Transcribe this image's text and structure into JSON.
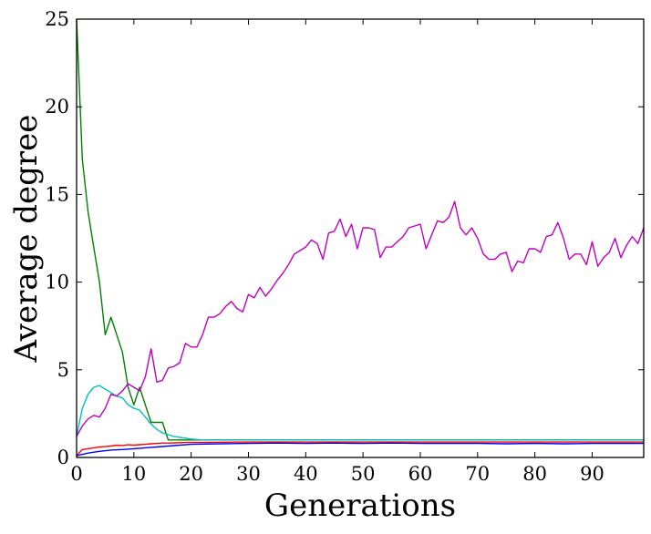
{
  "chart_data": {
    "type": "line",
    "xlabel": "Generations",
    "ylabel": "Average degree",
    "xlim": [
      0,
      99
    ],
    "ylim": [
      0,
      25
    ],
    "xticks": [
      0,
      10,
      20,
      30,
      40,
      50,
      60,
      70,
      80,
      90
    ],
    "yticks": [
      0,
      5,
      10,
      15,
      20,
      25
    ],
    "grid": false,
    "legend": "none",
    "series": [
      {
        "color": "#008000",
        "x": [
          0,
          1,
          2,
          3,
          4,
          5,
          6,
          7,
          8,
          9,
          10,
          11,
          12,
          13,
          14,
          15,
          16,
          17,
          18,
          19,
          20,
          22,
          25,
          30,
          35,
          40,
          45,
          50,
          55,
          60,
          65,
          70,
          75,
          80,
          85,
          90,
          95,
          99
        ],
        "y": [
          25,
          17,
          14,
          12,
          10,
          7,
          8,
          7,
          6,
          4,
          3,
          4,
          3,
          2,
          2,
          2,
          1,
          1,
          1,
          1,
          1,
          1,
          1,
          1,
          1,
          1,
          1,
          1,
          1,
          1,
          1,
          1,
          1,
          1,
          1,
          1,
          1,
          1
        ]
      },
      {
        "color": "#00bfbf",
        "x": [
          0,
          1,
          2,
          3,
          4,
          5,
          6,
          7,
          8,
          9,
          10,
          11,
          12,
          13,
          14,
          15,
          16,
          17,
          18,
          19,
          20,
          22,
          25,
          30,
          35,
          40,
          45,
          50,
          55,
          60,
          65,
          70,
          75,
          80,
          85,
          90,
          95,
          99
        ],
        "y": [
          1.2,
          2.8,
          3.6,
          4.0,
          4.1,
          3.9,
          3.7,
          3.5,
          3.4,
          3.0,
          2.8,
          2.7,
          2.3,
          1.9,
          1.6,
          1.4,
          1.3,
          1.2,
          1.15,
          1.1,
          1.05,
          1.0,
          1.0,
          1.0,
          1.0,
          1.0,
          1.0,
          1.0,
          1.0,
          1.0,
          1.0,
          1.0,
          1.0,
          1.0,
          1.0,
          1.0,
          1.0,
          1.0
        ]
      },
      {
        "color": "#ff0000",
        "x": [
          0,
          1,
          2,
          3,
          4,
          5,
          6,
          7,
          8,
          9,
          10,
          11,
          12,
          13,
          14,
          15,
          16,
          17,
          18,
          19,
          20,
          22,
          25,
          30,
          35,
          40,
          45,
          50,
          55,
          60,
          65,
          70,
          75,
          80,
          85,
          90,
          95,
          99
        ],
        "y": [
          0.1,
          0.45,
          0.5,
          0.55,
          0.6,
          0.62,
          0.65,
          0.7,
          0.68,
          0.72,
          0.7,
          0.73,
          0.75,
          0.78,
          0.8,
          0.82,
          0.82,
          0.83,
          0.84,
          0.85,
          0.85,
          0.86,
          0.87,
          0.88,
          0.88,
          0.88,
          0.88,
          0.88,
          0.88,
          0.88,
          0.88,
          0.88,
          0.88,
          0.88,
          0.88,
          0.88,
          0.88,
          0.88
        ]
      },
      {
        "color": "#0000ff",
        "x": [
          0,
          2,
          4,
          6,
          8,
          10,
          12,
          14,
          16,
          18,
          20,
          25,
          30,
          35,
          40,
          45,
          50,
          55,
          60,
          65,
          70,
          75,
          80,
          85,
          90,
          95,
          99
        ],
        "y": [
          0.1,
          0.25,
          0.35,
          0.42,
          0.45,
          0.5,
          0.55,
          0.6,
          0.65,
          0.7,
          0.75,
          0.78,
          0.8,
          0.82,
          0.8,
          0.82,
          0.8,
          0.82,
          0.8,
          0.8,
          0.8,
          0.78,
          0.8,
          0.78,
          0.8,
          0.8,
          0.8
        ]
      },
      {
        "color": "#bf00bf",
        "x": [
          0,
          1,
          2,
          3,
          4,
          5,
          6,
          7,
          8,
          9,
          10,
          11,
          12,
          13,
          14,
          15,
          16,
          17,
          18,
          19,
          20,
          21,
          22,
          23,
          24,
          25,
          26,
          27,
          28,
          29,
          30,
          31,
          32,
          33,
          34,
          35,
          36,
          37,
          38,
          39,
          40,
          41,
          42,
          43,
          44,
          45,
          46,
          47,
          48,
          49,
          50,
          51,
          52,
          53,
          54,
          55,
          56,
          57,
          58,
          59,
          60,
          61,
          62,
          63,
          64,
          65,
          66,
          67,
          68,
          69,
          70,
          71,
          72,
          73,
          74,
          75,
          76,
          77,
          78,
          79,
          80,
          81,
          82,
          83,
          84,
          85,
          86,
          87,
          88,
          89,
          90,
          91,
          92,
          93,
          94,
          95,
          96,
          97,
          98,
          99
        ],
        "y": [
          1.2,
          1.8,
          2.2,
          2.4,
          2.3,
          2.8,
          3.6,
          3.5,
          3.8,
          4.2,
          4.0,
          3.8,
          4.6,
          6.2,
          4.3,
          4.4,
          5.1,
          5.2,
          5.4,
          6.5,
          6.3,
          6.3,
          7.0,
          8.0,
          8.0,
          8.2,
          8.6,
          8.9,
          8.5,
          8.3,
          9.3,
          9.1,
          9.7,
          9.2,
          9.6,
          10.1,
          10.5,
          11.0,
          11.6,
          11.8,
          12.0,
          12.4,
          12.2,
          11.3,
          12.8,
          12.9,
          13.6,
          12.6,
          13.3,
          11.9,
          13.1,
          13.1,
          13.0,
          11.4,
          12.0,
          12.0,
          12.3,
          12.6,
          13.1,
          13.2,
          13.3,
          11.9,
          12.7,
          13.5,
          13.4,
          13.7,
          14.6,
          13.1,
          12.7,
          13.1,
          12.5,
          11.6,
          11.3,
          11.3,
          11.6,
          11.7,
          10.6,
          11.2,
          11.1,
          11.9,
          11.9,
          11.7,
          12.6,
          12.7,
          13.4,
          12.5,
          11.3,
          11.6,
          11.6,
          11.0,
          12.3,
          10.9,
          11.4,
          11.7,
          12.5,
          11.4,
          12.1,
          12.6,
          12.2,
          13.1
        ]
      }
    ]
  }
}
